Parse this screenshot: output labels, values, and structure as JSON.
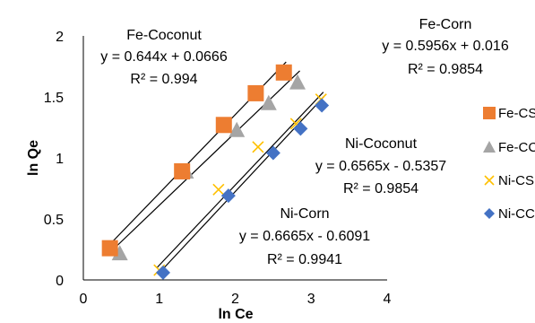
{
  "chart_data": {
    "type": "scatter",
    "xlabel": "ln Ce",
    "ylabel": "ln Qe",
    "xlim": [
      0,
      4
    ],
    "ylim": [
      0,
      2
    ],
    "x_ticks": [
      "0",
      "1",
      "2",
      "3",
      "4"
    ],
    "y_ticks": [
      "0",
      "0.5",
      "1",
      "1.5",
      "2"
    ],
    "grid": false,
    "legend_position": "right",
    "series": [
      {
        "name": "Fe-CS",
        "marker": "square",
        "color": "#ED7D31",
        "x": [
          0.35,
          1.3,
          1.85,
          2.27,
          2.64
        ],
        "y": [
          0.26,
          0.89,
          1.27,
          1.53,
          1.7
        ],
        "fit": {
          "slope": 0.644,
          "intercept": 0.0666
        }
      },
      {
        "name": "Fe-CC",
        "marker": "triangle",
        "color": "#A5A5A5",
        "x": [
          0.48,
          1.35,
          2.02,
          2.44,
          2.82
        ],
        "y": [
          0.22,
          0.89,
          1.23,
          1.45,
          1.62
        ],
        "fit": {
          "slope": 0.5956,
          "intercept": 0.016
        }
      },
      {
        "name": "Ni-CS",
        "marker": "x",
        "color": "#FFC000",
        "x": [
          1.0,
          1.78,
          2.3,
          2.8,
          3.13
        ],
        "y": [
          0.08,
          0.74,
          1.09,
          1.28,
          1.48
        ],
        "fit": {
          "slope": 0.6565,
          "intercept": -0.5357
        }
      },
      {
        "name": "Ni-CC",
        "marker": "diamond",
        "color": "#4472C4",
        "x": [
          1.05,
          1.91,
          2.5,
          2.86,
          3.14
        ],
        "y": [
          0.06,
          0.69,
          1.04,
          1.24,
          1.43
        ],
        "fit": {
          "slope": 0.6665,
          "intercept": -0.6091
        }
      }
    ],
    "annotations": [
      {
        "series": "Fe-CS",
        "lines": [
          "Fe-Coconut",
          "y = 0.644x + 0.0666",
          "R² = 0.994"
        ]
      },
      {
        "series": "Fe-CC",
        "lines": [
          "Fe-Corn",
          "y = 0.5956x + 0.016",
          "R² = 0.9854"
        ]
      },
      {
        "series": "Ni-CS",
        "lines": [
          "Ni-Coconut",
          "y = 0.6565x - 0.5357",
          "R² = 0.9854"
        ]
      },
      {
        "series": "Ni-CC",
        "lines": [
          "Ni-Corn",
          "y = 0.6665x - 0.6091",
          "R² = 0.9941"
        ]
      }
    ]
  }
}
